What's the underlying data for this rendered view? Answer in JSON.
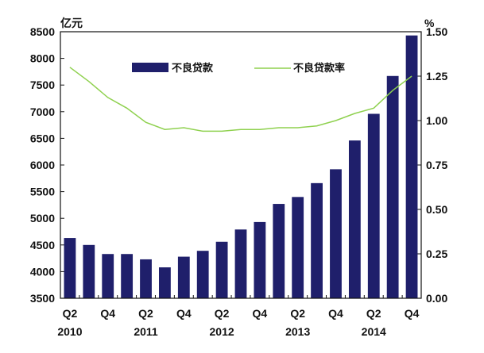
{
  "chart_data": {
    "type": "bar",
    "units": {
      "left": "亿元",
      "right": "%"
    },
    "x": [
      "2010Q2",
      "2010Q3",
      "2010Q4",
      "2011Q1",
      "2011Q2",
      "2011Q3",
      "2011Q4",
      "2012Q1",
      "2012Q2",
      "2012Q3",
      "2012Q4",
      "2013Q1",
      "2013Q2",
      "2013Q3",
      "2013Q4",
      "2014Q1",
      "2014Q2",
      "2014Q3",
      "2014Q4"
    ],
    "x_tick_labels": [
      {
        "quarter": "Q2",
        "year": "2010",
        "index": 0
      },
      {
        "quarter": "Q4",
        "year": "",
        "index": 2
      },
      {
        "quarter": "Q2",
        "year": "2011",
        "index": 4
      },
      {
        "quarter": "Q4",
        "year": "",
        "index": 6
      },
      {
        "quarter": "Q2",
        "year": "2012",
        "index": 8
      },
      {
        "quarter": "Q4",
        "year": "",
        "index": 10
      },
      {
        "quarter": "Q2",
        "year": "2013",
        "index": 12
      },
      {
        "quarter": "Q4",
        "year": "",
        "index": 14
      },
      {
        "quarter": "Q2",
        "year": "2014",
        "index": 16
      },
      {
        "quarter": "Q4",
        "year": "",
        "index": 18
      }
    ],
    "left_axis": {
      "min": 3500,
      "max": 8500,
      "ticks": [
        "3500",
        "4000",
        "4500",
        "5000",
        "5500",
        "6000",
        "6500",
        "7000",
        "7500",
        "8000",
        "8500"
      ]
    },
    "right_axis": {
      "min": 0,
      "max": 1.5,
      "ticks": [
        "0.00",
        "0.25",
        "0.50",
        "0.75",
        "1.00",
        "1.25",
        "1.50"
      ]
    },
    "series": [
      {
        "name": "不良贷款",
        "kind": "bar",
        "axis": "left",
        "color": "#1f1f6b",
        "values": [
          4630,
          4500,
          4330,
          4330,
          4230,
          4080,
          4280,
          4390,
          4560,
          4790,
          4930,
          5270,
          5400,
          5660,
          5920,
          6460,
          6960,
          7670,
          8430
        ]
      },
      {
        "name": "不良贷款率",
        "kind": "line",
        "axis": "right",
        "color": "#8fd14f",
        "values": [
          1.3,
          1.22,
          1.13,
          1.07,
          0.99,
          0.95,
          0.96,
          0.94,
          0.94,
          0.95,
          0.95,
          0.96,
          0.96,
          0.97,
          1.0,
          1.04,
          1.07,
          1.17,
          1.25
        ]
      }
    ],
    "legend": "top",
    "grid": false
  }
}
